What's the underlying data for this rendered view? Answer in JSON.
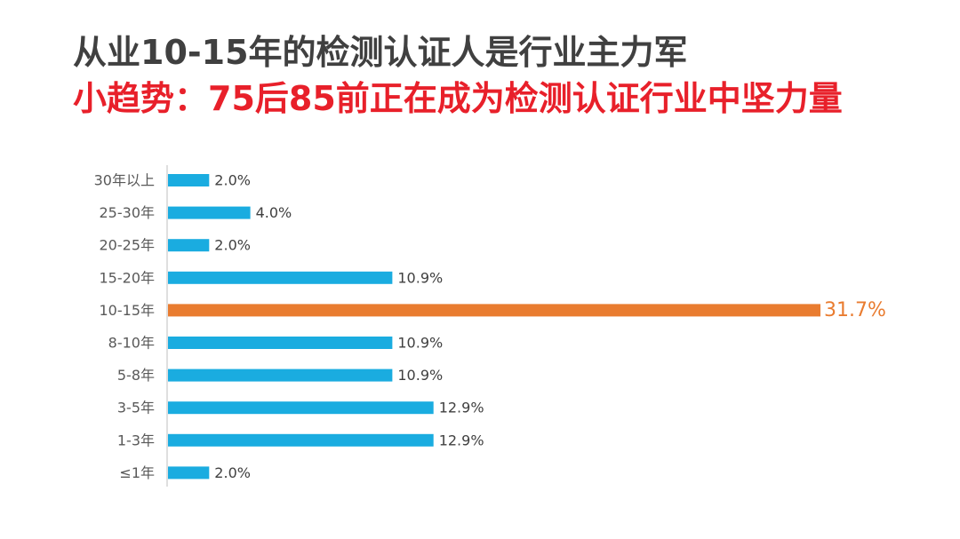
{
  "header": {
    "title": "从业10-15年的检测认证人是行业主力军",
    "subtitle": "小趋势：75后85前正在成为检测认证行业中坚力量"
  },
  "colors": {
    "bar_default": "#1aace0",
    "bar_highlight": "#e97c30",
    "title_color": "#404040",
    "subtitle_color": "#e8202a"
  },
  "chart_data": {
    "type": "bar",
    "orientation": "horizontal",
    "categories": [
      "30年以上",
      "25-30年",
      "20-25年",
      "15-20年",
      "10-15年",
      "8-10年",
      "5-8年",
      "3-5年",
      "1-3年",
      "≤1年"
    ],
    "values": [
      2.0,
      4.0,
      2.0,
      10.9,
      31.7,
      10.9,
      10.9,
      12.9,
      12.9,
      2.0
    ],
    "value_labels": [
      "2.0%",
      "4.0%",
      "2.0%",
      "10.9%",
      "31.7%",
      "10.9%",
      "10.9%",
      "12.9%",
      "12.9%",
      "2.0%"
    ],
    "highlight_category": "10-15年",
    "xlim": [
      0,
      31.7
    ],
    "grid": false,
    "legend": "none"
  }
}
